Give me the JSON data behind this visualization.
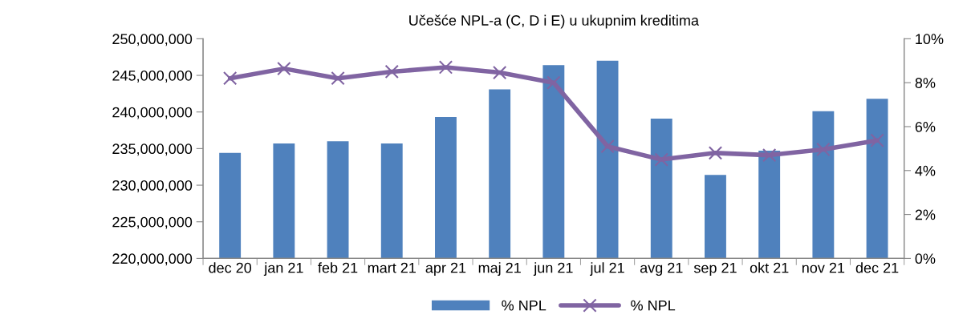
{
  "chart_data": {
    "type": "bar",
    "title": "Učešće NPL-a (C, D i E) u ukupnim kreditima",
    "categories": [
      "dec 20",
      "jan 21",
      "feb 21",
      "mart 21",
      "apr 21",
      "maj 21",
      "jun 21",
      "jul 21",
      "avg 21",
      "sep 21",
      "okt 21",
      "nov 21",
      "dec 21"
    ],
    "series": [
      {
        "name": "% NPL",
        "color": "#4f81bd",
        "values": [
          234400000,
          235700000,
          236000000,
          235700000,
          239300000,
          243100000,
          246400000,
          247000000,
          239100000,
          231400000,
          234700000,
          240100000,
          241800000
        ]
      },
      {
        "name": "% NPL",
        "type": "line",
        "axis": "y2",
        "color": "#8064a2",
        "marker": "cross",
        "values": [
          8.2,
          8.64,
          8.2,
          8.5,
          8.7,
          8.46,
          8.0,
          5.1,
          4.5,
          4.8,
          4.7,
          4.96,
          5.37
        ]
      }
    ],
    "ylim": [
      220000000,
      250000000
    ],
    "yticks": [
      {
        "value": 220000000,
        "label": "220,000,000"
      },
      {
        "value": 225000000,
        "label": "225,000,000"
      },
      {
        "value": 230000000,
        "label": "230,000,000"
      },
      {
        "value": 235000000,
        "label": "235,000,000"
      },
      {
        "value": 240000000,
        "label": "240,000,000"
      },
      {
        "value": 245000000,
        "label": "245,000,000"
      },
      {
        "value": 250000000,
        "label": "250,000,000"
      }
    ],
    "y2lim": [
      0,
      10
    ],
    "y2ticks": [
      {
        "value": 0,
        "label": "0%"
      },
      {
        "value": 2,
        "label": "2%"
      },
      {
        "value": 4,
        "label": "4%"
      },
      {
        "value": 6,
        "label": "6%"
      },
      {
        "value": 8,
        "label": "8%"
      },
      {
        "value": 10,
        "label": "10%"
      }
    ],
    "grid": false,
    "legend": "bottom"
  }
}
